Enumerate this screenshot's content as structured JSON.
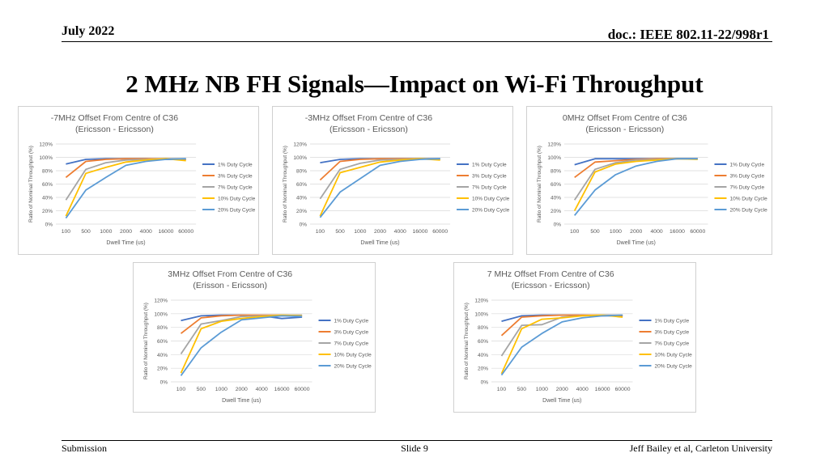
{
  "header": {
    "date": "July 2022",
    "doc": "doc.: IEEE 802.11-22/998r1"
  },
  "slide_title": "2 MHz NB FH Signals—Impact on Wi-Fi Throughput",
  "footer": {
    "left": "Submission",
    "center": "Slide 9",
    "right": "Jeff Bailey et al, Carleton University"
  },
  "series_colors": [
    "#4472C4",
    "#ED7D31",
    "#A5A5A5",
    "#FFC000",
    "#5B9BD5"
  ],
  "chart_data": [
    {
      "type": "line",
      "title": "-7MHz Offset From Centre of C36",
      "subtitle": "(Ericsson - Ericsson)",
      "xlabel": "Dwell Time (us)",
      "ylabel": "Ratio of Nominal Throughput (%)",
      "categories": [
        "100",
        "500",
        "1000",
        "2000",
        "4000",
        "16000",
        "60000"
      ],
      "yticks": [
        "0%",
        "20%",
        "40%",
        "60%",
        "80%",
        "100%",
        "120%"
      ],
      "ylim": [
        0,
        120
      ],
      "legend_position": "right",
      "series": [
        {
          "name": "1% Duty Cycle",
          "values": [
            90,
            97,
            98,
            98,
            98,
            97,
            97
          ]
        },
        {
          "name": "3% Duty Cycle",
          "values": [
            70,
            94,
            97,
            98,
            98,
            98,
            97
          ]
        },
        {
          "name": "7% Duty Cycle",
          "values": [
            36,
            82,
            92,
            96,
            97,
            98,
            98
          ]
        },
        {
          "name": "10% Duty Cycle",
          "values": [
            12,
            76,
            85,
            93,
            96,
            98,
            95
          ]
        },
        {
          "name": "20% Duty Cycle",
          "values": [
            9,
            51,
            70,
            88,
            94,
            97,
            98
          ]
        }
      ]
    },
    {
      "type": "line",
      "title": "-3MHz Offset From Centre of C36",
      "subtitle": "(Ericsson - Ericsson)",
      "xlabel": "Dwell Time (us)",
      "ylabel": "Ratio of Nominal Throughput (%)",
      "categories": [
        "100",
        "500",
        "1000",
        "2000",
        "4000",
        "16000",
        "60000"
      ],
      "yticks": [
        "0%",
        "20%",
        "40%",
        "60%",
        "80%",
        "100%",
        "120%"
      ],
      "ylim": [
        0,
        120
      ],
      "legend_position": "right",
      "series": [
        {
          "name": "1% Duty Cycle",
          "values": [
            92,
            97,
            98,
            98,
            98,
            98,
            98
          ]
        },
        {
          "name": "3% Duty Cycle",
          "values": [
            66,
            94,
            97,
            98,
            98,
            98,
            97
          ]
        },
        {
          "name": "7% Duty Cycle",
          "values": [
            38,
            82,
            91,
            96,
            97,
            98,
            98
          ]
        },
        {
          "name": "10% Duty Cycle",
          "values": [
            12,
            77,
            85,
            93,
            96,
            98,
            96
          ]
        },
        {
          "name": "20% Duty Cycle",
          "values": [
            10,
            48,
            68,
            88,
            94,
            97,
            98
          ]
        }
      ]
    },
    {
      "type": "line",
      "title": "0MHz Offset From Centre of C36",
      "subtitle": "(Ericsson - Ericsson)",
      "xlabel": "Dwell Time (us)",
      "ylabel": "Ratio of Nominal Throughput (%)",
      "categories": [
        "100",
        "500",
        "1000",
        "2000",
        "4000",
        "16000",
        "60000"
      ],
      "yticks": [
        "0%",
        "20%",
        "40%",
        "60%",
        "80%",
        "100%",
        "120%"
      ],
      "ylim": [
        0,
        120
      ],
      "legend_position": "right",
      "series": [
        {
          "name": "1% Duty Cycle",
          "values": [
            89,
            98,
            98,
            98,
            98,
            98,
            98
          ]
        },
        {
          "name": "3% Duty Cycle",
          "values": [
            70,
            93,
            95,
            97,
            98,
            98,
            98
          ]
        },
        {
          "name": "7% Duty Cycle",
          "values": [
            36,
            82,
            92,
            96,
            97,
            98,
            98
          ]
        },
        {
          "name": "10% Duty Cycle",
          "values": [
            20,
            78,
            90,
            94,
            96,
            98,
            97
          ]
        },
        {
          "name": "20% Duty Cycle",
          "values": [
            13,
            51,
            74,
            87,
            94,
            98,
            98
          ]
        }
      ]
    },
    {
      "type": "line",
      "title": "3MHz Offset From Centre of C36",
      "subtitle": "(Erisson - Ericsson)",
      "xlabel": "Dwell Time (us)",
      "ylabel": "Ratio of Nominal Throughput (%)",
      "categories": [
        "100",
        "500",
        "1000",
        "2000",
        "4000",
        "16000",
        "60000"
      ],
      "yticks": [
        "0%",
        "20%",
        "40%",
        "60%",
        "80%",
        "100%",
        "120%"
      ],
      "ylim": [
        0,
        120
      ],
      "legend_position": "right",
      "series": [
        {
          "name": "1% Duty Cycle",
          "values": [
            90,
            97,
            98,
            98,
            97,
            93,
            95
          ]
        },
        {
          "name": "3% Duty Cycle",
          "values": [
            71,
            94,
            97,
            98,
            98,
            98,
            97
          ]
        },
        {
          "name": "7% Duty Cycle",
          "values": [
            41,
            85,
            90,
            96,
            97,
            98,
            98
          ]
        },
        {
          "name": "10% Duty Cycle",
          "values": [
            13,
            78,
            89,
            93,
            96,
            98,
            97
          ]
        },
        {
          "name": "20% Duty Cycle",
          "values": [
            9,
            50,
            73,
            91,
            94,
            97,
            96
          ]
        }
      ]
    },
    {
      "type": "line",
      "title": "7 MHz Offset From Centre of C36",
      "subtitle": "(Ericsson - Ericsson)",
      "xlabel": "Dwell Time (us)",
      "ylabel": "Ratio of Nominal Throughput (%)",
      "categories": [
        "100",
        "500",
        "1000",
        "2000",
        "4000",
        "16000",
        "60000"
      ],
      "yticks": [
        "0%",
        "20%",
        "40%",
        "60%",
        "80%",
        "100%",
        "120%"
      ],
      "ylim": [
        0,
        120
      ],
      "legend_position": "right",
      "series": [
        {
          "name": "1% Duty Cycle",
          "values": [
            89,
            97,
            98,
            98,
            98,
            97,
            97
          ]
        },
        {
          "name": "3% Duty Cycle",
          "values": [
            68,
            95,
            97,
            98,
            98,
            98,
            97
          ]
        },
        {
          "name": "7% Duty Cycle",
          "values": [
            38,
            83,
            84,
            95,
            97,
            98,
            98
          ]
        },
        {
          "name": "10% Duty Cycle",
          "values": [
            12,
            78,
            92,
            94,
            97,
            98,
            95
          ]
        },
        {
          "name": "20% Duty Cycle",
          "values": [
            10,
            51,
            71,
            88,
            94,
            97,
            98
          ]
        }
      ]
    }
  ]
}
